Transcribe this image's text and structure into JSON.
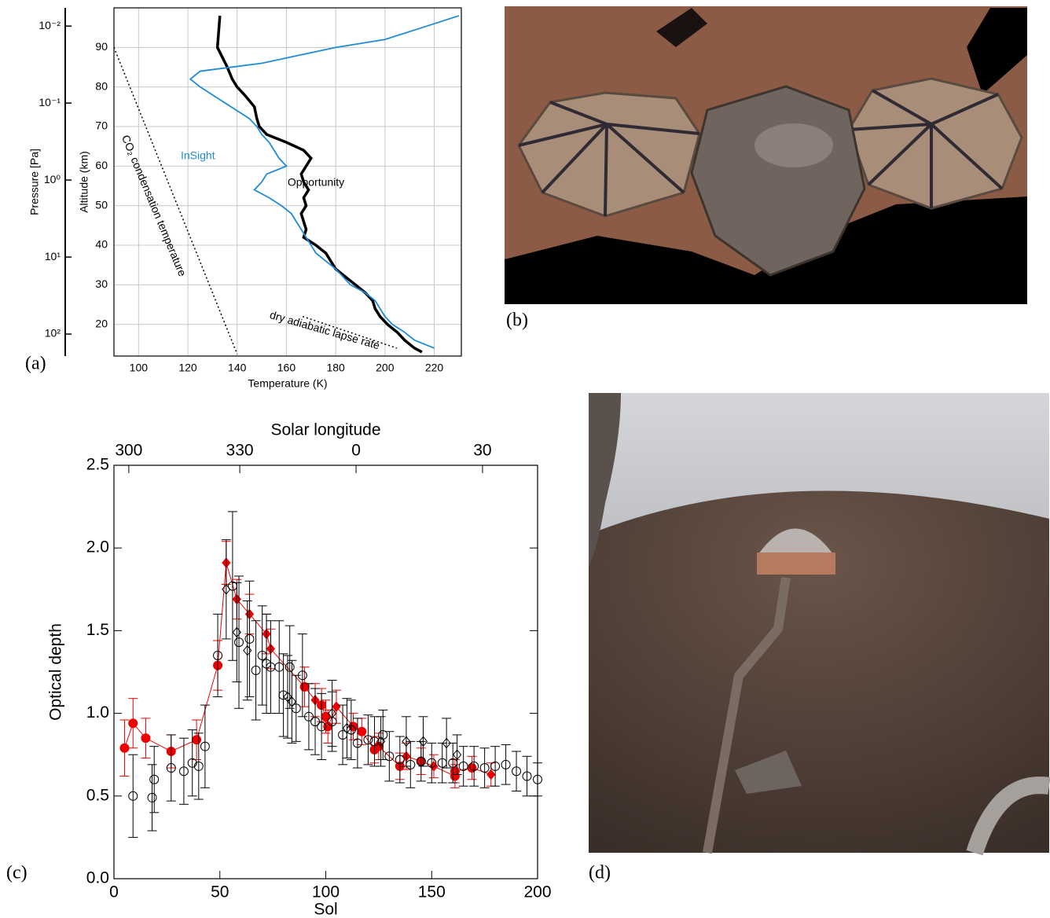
{
  "panel_labels": [
    "(a)",
    "(b)",
    "(c)",
    "(d)"
  ],
  "chart_data": [
    {
      "type": "line",
      "xlabel": "Temperature (K)",
      "ylabel": "Altitude (km)",
      "y2label": "Pressure [Pa]",
      "xlim": [
        90,
        231
      ],
      "ylim": [
        12,
        100
      ],
      "xticks": [
        100,
        120,
        140,
        160,
        180,
        200,
        220
      ],
      "yticks": [
        20,
        30,
        40,
        50,
        60,
        70,
        80,
        90
      ],
      "y2lim": [
        193,
        0.0058
      ],
      "y2log": true,
      "y2ticks": [
        {
          "value": 0.01,
          "label": "10⁻²"
        },
        {
          "value": 0.1,
          "label": "10⁻¹"
        },
        {
          "value": 1,
          "label": "10⁰"
        },
        {
          "value": 10,
          "label": "10¹"
        },
        {
          "value": 100,
          "label": "10²"
        }
      ],
      "grid": true,
      "series": [
        {
          "name": "InSight",
          "color": "#000000",
          "x": [
            133,
            132,
            136,
            138,
            140,
            143,
            147,
            148,
            149,
            152,
            160,
            167,
            170,
            168,
            166,
            167,
            169,
            167,
            168,
            166,
            167,
            168,
            167,
            172,
            176,
            178,
            180,
            184,
            188,
            192,
            195,
            196,
            198,
            201,
            205,
            208,
            212,
            215
          ],
          "y": [
            98,
            90,
            85,
            82,
            80,
            78,
            75,
            72,
            70,
            68,
            66,
            64,
            62,
            60,
            58,
            56,
            54,
            52,
            50,
            48,
            46,
            44,
            42,
            40,
            38,
            36,
            34,
            32,
            30,
            28,
            26,
            24,
            22,
            20,
            18,
            16,
            14,
            13
          ]
        },
        {
          "name": "Opportunity",
          "color": "#1e8bd8",
          "x": [
            230,
            215,
            200,
            180,
            165,
            150,
            125,
            121,
            125,
            130,
            135,
            140,
            145,
            148,
            150,
            153,
            155,
            157,
            160,
            152,
            150,
            147,
            153,
            158,
            162,
            164,
            166,
            168,
            170,
            172,
            176,
            180,
            183,
            186,
            192,
            196,
            198,
            200,
            203,
            208,
            212,
            220
          ],
          "y": [
            98,
            95,
            92,
            90,
            88,
            86,
            84,
            82,
            80,
            78,
            76,
            74,
            72,
            70,
            68,
            66,
            64,
            62,
            60,
            58,
            56,
            54,
            52,
            50,
            48,
            46,
            44,
            42,
            40,
            38,
            36,
            34,
            32,
            30,
            28,
            26,
            24,
            22,
            20,
            18,
            16,
            14
          ]
        },
        {
          "name": "CO₂ condensation temperature",
          "color": "#000000",
          "dash": "dotted",
          "x": [
            90,
            140
          ],
          "y": [
            90,
            12.5
          ]
        },
        {
          "name": "dry adiabatic lapse rate",
          "color": "#000000",
          "dash": "dotted",
          "x": [
            166.6,
            204.8
          ],
          "y": [
            22,
            14
          ]
        }
      ]
    },
    {
      "type": "scatter",
      "xlabel": "Sol",
      "ylabel": "Optical depth",
      "x2label": "Solar longitude",
      "xlim": [
        0,
        200
      ],
      "ylim": [
        0,
        2.5
      ],
      "xticks": [
        0,
        50,
        100,
        150,
        200
      ],
      "yticks": [
        {
          "value": 0,
          "label": "0.0"
        },
        {
          "value": 0.5,
          "label": "0.5"
        },
        {
          "value": 1,
          "label": "1.0"
        },
        {
          "value": 1.5,
          "label": "1.5"
        },
        {
          "value": 2,
          "label": "2.0"
        },
        {
          "value": 2.5,
          "label": "2.5"
        }
      ],
      "x2ticks": [
        {
          "value": 7,
          "label": "300"
        },
        {
          "value": 59.4,
          "label": "330"
        },
        {
          "value": 114.3,
          "label": "0"
        },
        {
          "value": 174,
          "label": "30"
        }
      ],
      "series": [
        {
          "color": "#ee0000",
          "line": true,
          "fill": true,
          "markers": [
            "circle",
            "circle",
            "circle",
            "circle",
            "circle",
            "circle",
            "diamond",
            "diamond",
            "diamond",
            "diamond",
            "diamond",
            "circle",
            "diamond",
            "circle",
            "circle",
            "circle",
            "diamond",
            "circle",
            "circle",
            "circle",
            "circle",
            "circle",
            "diamond",
            "circle",
            "diamond",
            "circle",
            "circle",
            "circle",
            "diamond"
          ],
          "x": [
            5,
            9,
            15,
            27,
            39,
            49,
            53,
            58,
            64,
            72,
            74,
            90,
            95,
            98,
            100,
            101,
            105,
            113,
            117,
            123,
            125,
            135,
            138,
            145,
            151,
            161,
            161,
            169,
            178
          ],
          "values": [
            0.79,
            0.94,
            0.85,
            0.77,
            0.84,
            1.29,
            1.91,
            1.69,
            1.6,
            1.48,
            1.39,
            1.16,
            1.08,
            1.05,
            0.98,
            0.92,
            1.04,
            0.92,
            0.89,
            0.78,
            0.8,
            0.68,
            0.74,
            0.71,
            0.68,
            0.62,
            0.65,
            0.67,
            0.63
          ],
          "errors": [
            0.17,
            0.15,
            0.12,
            0.1,
            0.12,
            0.15,
            0.13,
            0.12,
            0.12,
            0.12,
            0.12,
            0.12,
            0.1,
            0.1,
            0.1,
            0.1,
            0.1,
            0.08,
            0.08,
            0.08,
            0.08,
            0.08,
            0.08,
            0.08,
            0.07,
            0.07,
            0.07,
            0.07,
            0.07
          ]
        },
        {
          "color": "#000000",
          "marker": "circle",
          "x": [
            9,
            18,
            19,
            27,
            33,
            37,
            40,
            43,
            49,
            56,
            59,
            64,
            67,
            70,
            72,
            74,
            78,
            80,
            83,
            86,
            89,
            92,
            95,
            98,
            103,
            108,
            112,
            115,
            120,
            123,
            127,
            130,
            135,
            140,
            145,
            150,
            155,
            160,
            165,
            170,
            175,
            180,
            185,
            190,
            195,
            200
          ],
          "values": [
            0.5,
            0.49,
            0.6,
            0.67,
            0.65,
            0.7,
            0.68,
            0.8,
            1.35,
            1.77,
            1.43,
            1.45,
            1.26,
            1.35,
            1.3,
            1.28,
            1.28,
            1.11,
            1.28,
            1.03,
            1.23,
            0.98,
            0.95,
            0.92,
            0.95,
            0.87,
            0.9,
            0.82,
            0.84,
            0.83,
            0.87,
            0.74,
            0.72,
            0.69,
            0.71,
            0.7,
            0.7,
            0.7,
            0.68,
            0.68,
            0.67,
            0.68,
            0.69,
            0.65,
            0.62,
            0.6
          ],
          "errors": [
            0.25,
            0.2,
            0.2,
            0.2,
            0.2,
            0.2,
            0.2,
            0.25,
            0.25,
            0.45,
            0.4,
            0.35,
            0.3,
            0.3,
            0.3,
            0.28,
            0.28,
            0.25,
            0.25,
            0.2,
            0.25,
            0.2,
            0.2,
            0.2,
            0.18,
            0.18,
            0.18,
            0.15,
            0.15,
            0.15,
            0.15,
            0.15,
            0.14,
            0.14,
            0.12,
            0.12,
            0.12,
            0.12,
            0.12,
            0.12,
            0.12,
            0.12,
            0.12,
            0.12,
            0.12,
            0.1
          ]
        },
        {
          "color": "#000000",
          "marker": "diamond",
          "x": [
            53,
            58,
            63,
            82,
            84,
            103,
            110,
            126,
            138,
            146,
            157,
            162
          ],
          "values": [
            1.75,
            1.49,
            1.38,
            1.1,
            1.07,
            1.0,
            0.91,
            0.83,
            0.83,
            0.83,
            0.82,
            0.75
          ],
          "errors": [
            0.3,
            0.3,
            0.3,
            0.25,
            0.25,
            0.2,
            0.18,
            0.15,
            0.15,
            0.15,
            0.15,
            0.12
          ]
        }
      ]
    }
  ]
}
